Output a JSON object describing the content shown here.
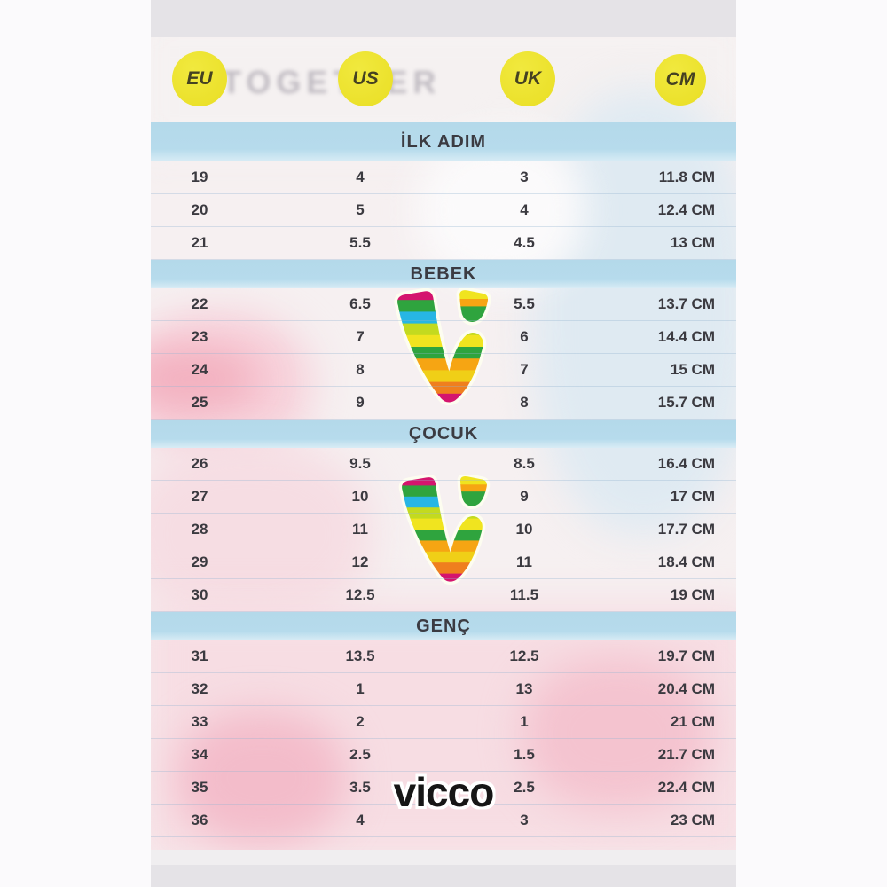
{
  "header": {
    "columns": [
      "EU",
      "US",
      "UK",
      "CM"
    ]
  },
  "background": {
    "photo_text": "TOGETHER"
  },
  "brand": {
    "wordmark": "vicco",
    "logo": "vicco-rainbow-v-logo"
  },
  "table": {
    "sections": [
      {
        "title": "İLK ADIM",
        "rows": [
          [
            "19",
            "4",
            "3",
            "11.8 CM"
          ],
          [
            "20",
            "5",
            "4",
            "12.4 CM"
          ],
          [
            "21",
            "5.5",
            "4.5",
            "13 CM"
          ]
        ]
      },
      {
        "title": "BEBEK",
        "rows": [
          [
            "22",
            "6.5",
            "5.5",
            "13.7 CM"
          ],
          [
            "23",
            "7",
            "6",
            "14.4 CM"
          ],
          [
            "24",
            "8",
            "7",
            "15 CM"
          ],
          [
            "25",
            "9",
            "8",
            "15.7 CM"
          ]
        ]
      },
      {
        "title": "ÇOCUK",
        "rows": [
          [
            "26",
            "9.5",
            "8.5",
            "16.4 CM"
          ],
          [
            "27",
            "10",
            "9",
            "17 CM"
          ],
          [
            "28",
            "11",
            "10",
            "17.7 CM"
          ],
          [
            "29",
            "12",
            "11",
            "18.4 CM"
          ],
          [
            "30",
            "12.5",
            "11.5",
            "19 CM"
          ]
        ]
      },
      {
        "title": "GENÇ",
        "rows": [
          [
            "31",
            "13.5",
            "12.5",
            "19.7 CM"
          ],
          [
            "32",
            "1",
            "13",
            "20.4 CM"
          ],
          [
            "33",
            "2",
            "1",
            "21 CM"
          ],
          [
            "34",
            "2.5",
            "1.5",
            "21.7 CM"
          ],
          [
            "35",
            "3.5",
            "2.5",
            "22.4 CM"
          ],
          [
            "36",
            "4",
            "3",
            "23 CM"
          ]
        ]
      }
    ]
  },
  "colors": {
    "badge_yellow": "#ebe22a",
    "band_blue": "#b6dbec",
    "text_dark": "#3b3a40",
    "card_gray": "#e5e3e7",
    "logo_outline": "#fdfdf0",
    "logo_stripes": [
      "#d4146e",
      "#2fa43e",
      "#27b6e4",
      "#c3da1f",
      "#f0e41f",
      "#2fa43e",
      "#f6a513",
      "#f0cf17",
      "#ef7f1e",
      "#d4146e"
    ],
    "logo_comma_stripes": [
      {
        "color": "#f0e41f",
        "height": 10
      },
      {
        "color": "#f6a513",
        "height": 7
      },
      {
        "color": "#2fa43e",
        "height": 18
      }
    ]
  }
}
